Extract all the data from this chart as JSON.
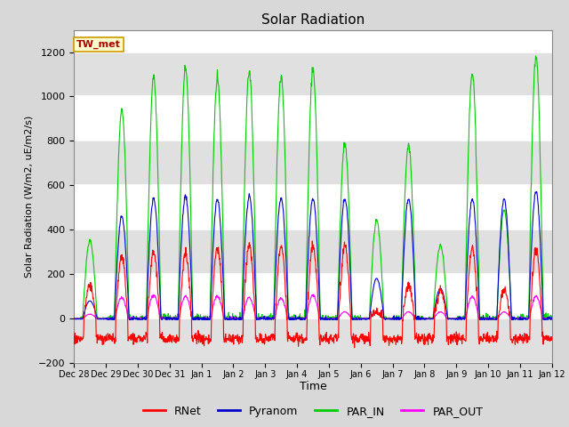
{
  "title": "Solar Radiation",
  "ylabel": "Solar Radiation (W/m2, uE/m2/s)",
  "xlabel": "Time",
  "ylim": [
    -200,
    1300
  ],
  "yticks": [
    -200,
    0,
    200,
    400,
    600,
    800,
    1000,
    1200
  ],
  "fig_bg_color": "#d8d8d8",
  "plot_bg_color": "#ffffff",
  "band_color": "#e0e0e0",
  "line_colors": {
    "RNet": "#ff0000",
    "Pyranom": "#0000cc",
    "PAR_IN": "#00cc00",
    "PAR_OUT": "#ff00ff"
  },
  "legend_label": "TW_met",
  "legend_box_facecolor": "#ffffcc",
  "legend_box_edgecolor": "#cc9900",
  "n_days": 15,
  "tick_labels": [
    "Dec 28",
    "Dec 29",
    "Dec 30",
    "Dec 31",
    "Jan 1",
    "Jan 2",
    "Jan 3",
    "Jan 4",
    "Jan 5",
    "Jan 6",
    "Jan 7",
    "Jan 8",
    "Jan 9",
    "Jan 10",
    "Jan 11",
    "Jan 12"
  ]
}
